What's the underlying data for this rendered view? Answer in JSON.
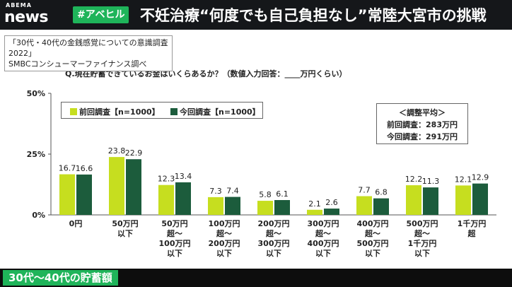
{
  "header": {
    "logo_small": "ABEMA",
    "logo_big": "news",
    "hashtag": "#アベヒル",
    "headline": "不妊治療“何度でも自己負担なし”常陸大宮市の挑戦"
  },
  "source": {
    "line1": "「30代・40代の金銭感覚についての意識調査2022」",
    "line2": "SMBCコンシューマーファイナンス調べ"
  },
  "average_box": {
    "title": "＜調整平均＞",
    "prev": "前回調査：283万円",
    "curr": "今回調査：291万円"
  },
  "bottom_banner": {
    "title": "30代～40代の貯蓄額"
  },
  "colors": {
    "prev": "#c6de1f",
    "curr": "#1c5c3c",
    "accent": "#1fb45a"
  },
  "chart_data": {
    "type": "bar",
    "title": "Q.現在貯蓄できているお金はいくらあるか？（数値入力回答：____万円くらい）",
    "xlabel": "",
    "ylabel": "",
    "ylim": [
      0,
      50
    ],
    "yticks": [
      "0%",
      "25%",
      "50%"
    ],
    "grid": false,
    "legend_position": "top-left",
    "categories": [
      "0円",
      "50万円\n以下",
      "50万円\n超～\n100万円\n以下",
      "100万円\n超～\n200万円\n以下",
      "200万円\n超～\n300万円\n以下",
      "300万円\n超～\n400万円\n以下",
      "400万円\n超～\n500万円\n以下",
      "500万円\n超～\n1千万円\n以下",
      "1千万円\n超"
    ],
    "series": [
      {
        "name": "前回調査【n=1000】",
        "values": [
          16.7,
          23.8,
          12.3,
          7.3,
          5.8,
          2.1,
          7.7,
          12.2,
          12.1
        ]
      },
      {
        "name": "今回調査【n=1000】",
        "values": [
          16.6,
          22.9,
          13.4,
          7.4,
          6.1,
          2.6,
          6.8,
          11.3,
          12.9
        ]
      }
    ]
  }
}
